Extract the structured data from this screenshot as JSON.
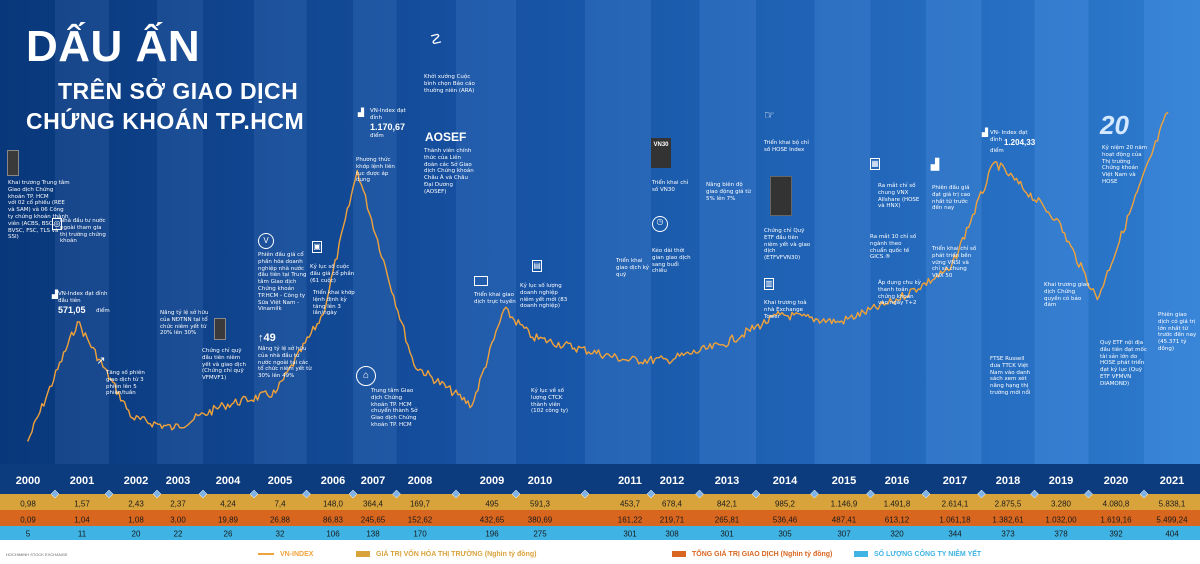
{
  "title": {
    "line1": "DẤU ẤN",
    "line2": "TRÊN SỞ GIAO DỊCH",
    "line3": "CHỨNG KHOÁN TP.HCM"
  },
  "footer_brand": "HOCHIMINH STOCK EXCHANGE",
  "colors": {
    "bg_dark": "#0b3f86",
    "bg_light": "#2a72c9",
    "line": "#f0a23a",
    "row_market_cap": "#d9a33c",
    "row_trading_value": "#d9661f",
    "row_listed": "#3eb3e4"
  },
  "chart_data": {
    "type": "line",
    "series": [
      {
        "name": "VN-INDEX",
        "x": [
          "2000-07",
          "2001-06",
          "2002-06",
          "2003-06",
          "2004-06",
          "2005-06",
          "2006-04",
          "2007-03",
          "2008-06",
          "2009-02",
          "2009-10",
          "2010-06",
          "2011-06",
          "2012-06",
          "2013-06",
          "2014-06",
          "2015-06",
          "2016-06",
          "2017-06",
          "2018-04",
          "2019-06",
          "2020-03",
          "2021-06"
        ],
        "values": [
          100,
          571.05,
          190,
          150,
          240,
          290,
          600,
          1170.67,
          400,
          240,
          620,
          510,
          420,
          420,
          480,
          600,
          570,
          650,
          780,
          1204.33,
          980,
          660,
          1400
        ]
      }
    ],
    "years": [
      "2000",
      "2001",
      "2002",
      "2003",
      "2004",
      "2005",
      "2006",
      "2007",
      "2008",
      "2009",
      "2010",
      "2011",
      "2012",
      "2013",
      "2014",
      "2015",
      "2016",
      "2017",
      "2018",
      "2019",
      "2020",
      "2021"
    ],
    "market_cap": [
      "0,98",
      "1,57",
      "2,43",
      "2,37",
      "4,24",
      "7,4",
      "148,0",
      "364,4",
      "169,7",
      "495",
      "591,3",
      "453,7",
      "678,4",
      "842,1",
      "985,2",
      "1.146,9",
      "1.491,8",
      "2.614,1",
      "2.875,5",
      "3.280",
      "4.080,8",
      "5.838,1"
    ],
    "trading_value": [
      "0,09",
      "1,04",
      "1,08",
      "3,00",
      "19,89",
      "26,88",
      "86,83",
      "245,65",
      "152,62",
      "432,65",
      "380,69",
      "161,22",
      "219,71",
      "265,81",
      "536,46",
      "487,41",
      "613,12",
      "1.061,18",
      "1.382,61",
      "1.032,00",
      "1.619,16",
      "5.499,24"
    ],
    "listed_companies": [
      "5",
      "11",
      "20",
      "22",
      "26",
      "32",
      "106",
      "138",
      "170",
      "196",
      "275",
      "301",
      "308",
      "301",
      "305",
      "307",
      "320",
      "344",
      "373",
      "378",
      "392",
      "404"
    ],
    "legend": [
      "VN-INDEX",
      "GIÁ TRỊ VỐN HÓA THỊ TRƯỜNG (Nghìn tỷ đồng)",
      "TỔNG GIÁ TRỊ GIAO DỊCH (Nghìn tỷ đồng)",
      "SỐ LƯỢNG CÔNG TY NIÊM YẾT"
    ]
  },
  "annotations": {
    "a2000": "Khai trương Trung tâm Giao dịch Chứng khoán TP. HCM\nvới 02 cổ phiếu (REE và SAM) và 06 Công ty chứng khoán thành viên (ACBS, BSC, BVSC, FSC, TLS và SSI)",
    "a2001a": "Nhà đầu tư nước ngoài tham gia thị trường chứng khoán",
    "a2001b_label": "VN-Index đạt đỉnh đầu tiên",
    "a2001b_val": "571,05",
    "a2001b_unit": "điểm",
    "a2002": "Tăng số phiên giao dịch từ 3 phiên lên 5 phiên/tuần",
    "a2003": "Nâng tỷ lệ sở hữu của NĐTNN tại tổ chức niêm yết từ 20% lên 30%",
    "a2004": "Chứng chỉ quỹ đầu tiên niêm yết và giao dịch (Chứng chỉ quỹ VFMVF1)",
    "a2005a": "Phiên đấu giá cổ phần hóa doanh nghiệp nhà nước đầu tiên tại Trung tâm Giao dịch Chứng khoán TP.HCM - Công ty Sữa Việt Nam - Vinamilk",
    "a2005b_big": "49",
    "a2005b": "Nâng tỷ lệ sở hữu của nhà đầu tư nước ngoài tại các tổ chức niêm yết từ 30% lên 49%",
    "a2006a": "Kỷ lục số cuộc đấu giá cổ phần (61 cuộc)",
    "a2006b": "Phương thức khớp lệnh liên tục được áp dụng",
    "a2006c": "Triển khai khớp lệnh định kỳ tăng lên 3 lần/ngày",
    "a2007a_label": "VN-Index đạt đỉnh",
    "a2007a_val": "1.170,67",
    "a2007a_unit": "điểm",
    "a2007b": "Trung tâm Giao dịch Chứng khoán TP. HCM chuyển thành Sở Giao dịch Chứng khoán TP. HCM",
    "a2008a": "Khởi xướng Cuộc bình chọn Báo cáo thường niên (ARA)",
    "a2008b_logo": "AOSEF",
    "a2008b": "Thành viên chính thức của Liên đoàn các Sở Giao dịch Chứng khoán Châu Á và Châu Đại Dương (AOSEF)",
    "a2009": "Triển khai giao dịch trực tuyến",
    "a2010a": "Kỷ lục số lượng doanh nghiệp niêm yết mới (83 doanh nghiệp)",
    "a2010b": "Kỷ lục về số lượng CTCK thành viên (102 công ty)",
    "a2011": "Triển khai giao dịch ký quỹ",
    "a2012a_icon": "VN30",
    "a2012a": "Triển khai chỉ số VN30",
    "a2012b": "Kéo dài thời gian giao dịch sang buổi chiều",
    "a2013": "Nâng biên độ giao động giá từ 5% lên 7%",
    "a2014a": "Triển khai bộ chỉ số HOSE Index",
    "a2014b": "Chứng chỉ Quỹ ETF đầu tiên niêm yết và giao dịch (ETFVFVN30)",
    "a2014c": "Khai trương toà nhà Exchange Tower",
    "a2016a": "Ra mắt chỉ số chung VNX Allshare (HOSE và HNX)",
    "a2016b": "Ra mắt 10 chỉ số ngành theo chuẩn quốc tế GICS.®",
    "a2016c": "Áp dụng chu kỳ thanh toán chứng khoán vào ngày T+2",
    "a2017a": "Phiên đấu giá đạt giá trị cao nhất từ trước đến nay",
    "a2017b": "Triển khai chỉ số phát triển bền vững VNSI và chỉ số chung VNX 50",
    "a2018a_label": "VN- Index đạt đỉnh",
    "a2018a_val": "1.204,33",
    "a2018a_unit": "điểm",
    "a2018b": "FTSE Russell đưa TTCK Việt Nam vào danh sách xem xét nâng hạng thị trường mới nổi",
    "a2019": "Khai trương giao dịch Chứng quyền có bảo đảm",
    "a2020a_logo": "20",
    "a2020a": "Kỷ niệm 20 năm hoạt động của Thị trường Chứng khoán Việt Nam và HOSE",
    "a2020b": "Quỹ ETF nội địa đầu tiên đạt mốc tài sản lớn do HOSE phát triển đạt kỷ lục (Quỹ ETF VFMVN DIAMOND)",
    "a2021": "Phiên giao dịch có giá trị lớn nhất từ trước đến nay (45.371 tỷ đồng)"
  }
}
